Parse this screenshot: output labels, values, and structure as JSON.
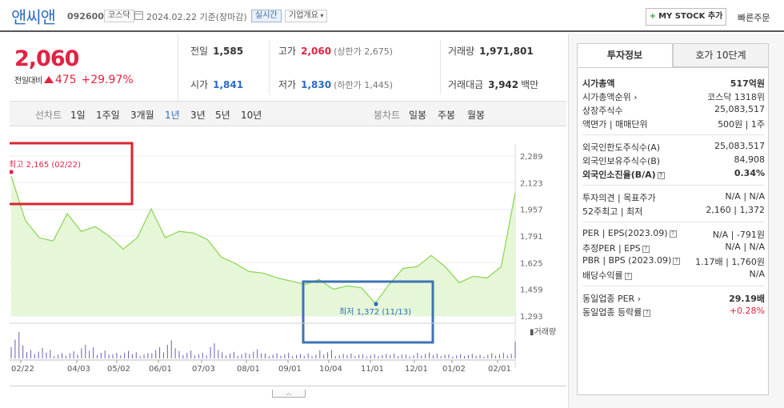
{
  "header": {
    "name": "앤씨앤",
    "code": "092600",
    "market": "코스닥",
    "date": "2024.02.22  기준(장마감)",
    "realtime": "실시간",
    "overview": "기업개요",
    "mystock": "MY STOCK 추가",
    "quick_order": "빠른주문"
  },
  "price": {
    "current": "2,060",
    "change_label": "전일대비",
    "change": "475",
    "change_pct": "+29.97%",
    "direction": "up"
  },
  "stats": {
    "prev_close": {
      "label": "전일",
      "value": "1,585"
    },
    "high": {
      "label": "고가",
      "value": "2,060",
      "sub": "(상한가 2,675)"
    },
    "volume": {
      "label": "거래량",
      "value": "1,971,801"
    },
    "open": {
      "label": "시가",
      "value": "1,841"
    },
    "low": {
      "label": "저가",
      "value": "1,830",
      "sub": "(하한가 1,445)"
    },
    "amount": {
      "label": "거래대금",
      "value": "3,942",
      "unit": "백만"
    }
  },
  "range_bar": {
    "line_label": "선차트",
    "line_options": [
      "1일",
      "1주일",
      "3개월",
      "1년",
      "3년",
      "5년",
      "10년"
    ],
    "active": "1년",
    "candle_label": "봉차트",
    "candle_options": [
      "일봉",
      "주봉",
      "월봉"
    ]
  },
  "chart_data": {
    "type": "area",
    "dates": [
      "02/22",
      "03/02",
      "03/14",
      "03/23",
      "04/03",
      "04/14",
      "04/25",
      "05/02",
      "05/12",
      "05/22",
      "06/01",
      "06/12",
      "06/22",
      "07/03",
      "07/13",
      "07/24",
      "08/01",
      "08/11",
      "08/22",
      "09/01",
      "09/11",
      "09/22",
      "10/04",
      "10/16",
      "10/26",
      "11/01",
      "11/13",
      "11/24",
      "12/01",
      "12/12",
      "12/22",
      "01/02",
      "01/12",
      "01/23",
      "02/01",
      "02/13",
      "02/22"
    ],
    "prices": [
      2165,
      1890,
      1780,
      1760,
      1930,
      1820,
      1850,
      1790,
      1710,
      1780,
      1960,
      1780,
      1820,
      1810,
      1770,
      1660,
      1620,
      1570,
      1560,
      1530,
      1510,
      1490,
      1520,
      1460,
      1480,
      1470,
      1372,
      1490,
      1590,
      1600,
      1670,
      1600,
      1500,
      1540,
      1530,
      1600,
      2060
    ],
    "volumes": [
      1.0,
      0.3,
      0.35,
      0.2,
      0.25,
      0.45,
      0.3,
      0.2,
      0.25,
      0.2,
      0.4,
      0.6,
      0.3,
      0.2,
      0.5,
      0.25,
      0.2,
      0.3,
      0.2,
      0.2,
      0.15,
      0.2,
      0.3,
      0.15,
      0.2,
      0.15,
      0.15,
      0.2,
      0.15,
      0.2,
      0.2,
      0.15,
      0.15,
      0.15,
      0.2,
      0.2,
      0.55
    ],
    "ylim": [
      1293,
      2289
    ],
    "y_ticks": [
      "2,289",
      "2,123",
      "1,957",
      "1,791",
      "1,625",
      "1,459",
      "1,293"
    ],
    "x_ticks": [
      "02/22",
      "04/03",
      "05/02",
      "06/01",
      "07/03",
      "08/01",
      "09/01",
      "10/04",
      "11/01",
      "12/01",
      "01/02",
      "02/01"
    ],
    "high_label": "최고 2,165 (02/22)",
    "low_label": "최저 1,372 (11/13)",
    "volume_label": "거래량",
    "colors": {
      "line": "#8fd65b",
      "fill": "#e6f7d8",
      "high": "#e12343",
      "low": "#2b6bc2",
      "high_box": "#d9262f",
      "low_box": "#3e73b5"
    }
  },
  "tabs": {
    "invest": "투자정보",
    "hoga": "호가 10단계"
  },
  "invest_info": {
    "group1": [
      {
        "k": "시가총액",
        "v": "517억원",
        "kb": true,
        "vb": true
      },
      {
        "k": "시가총액순위",
        "v": "코스닥 1318위",
        "arrow": true
      },
      {
        "k": "상장주식수",
        "v": "25,083,517"
      },
      {
        "k": "액면가 | 매매단위",
        "v": "500원 | 1주"
      }
    ],
    "group2": [
      {
        "k": "외국인한도주식수(A)",
        "v": "25,083,517"
      },
      {
        "k": "외국인보유주식수(B)",
        "v": "84,908"
      },
      {
        "k": "외국인소진율(B/A)",
        "v": "0.34%",
        "kb": true,
        "vb": true,
        "q": true
      }
    ],
    "group3": [
      {
        "k": "투자의견 | 목표주가",
        "v": "N/A | N/A"
      },
      {
        "k": "52주최고 | 최저",
        "v": "2,160 | 1,372"
      }
    ],
    "group4": [
      {
        "k": "PER | EPS(2023.09)",
        "v": "N/A | -791원",
        "q": true
      },
      {
        "k": "추정PER | EPS",
        "v": "N/A | N/A",
        "q": true
      },
      {
        "k": "PBR | BPS (2023.09)",
        "v": "1.17배 | 1,760원",
        "q": true
      },
      {
        "k": "배당수익률",
        "v": "N/A",
        "q": true
      }
    ],
    "group5": [
      {
        "k": "동일업종 PER",
        "v": "29.19배",
        "vb": true,
        "arrow": true
      },
      {
        "k": "동일업종 등락률",
        "v": "+0.28%",
        "red": true,
        "q": true
      }
    ]
  }
}
